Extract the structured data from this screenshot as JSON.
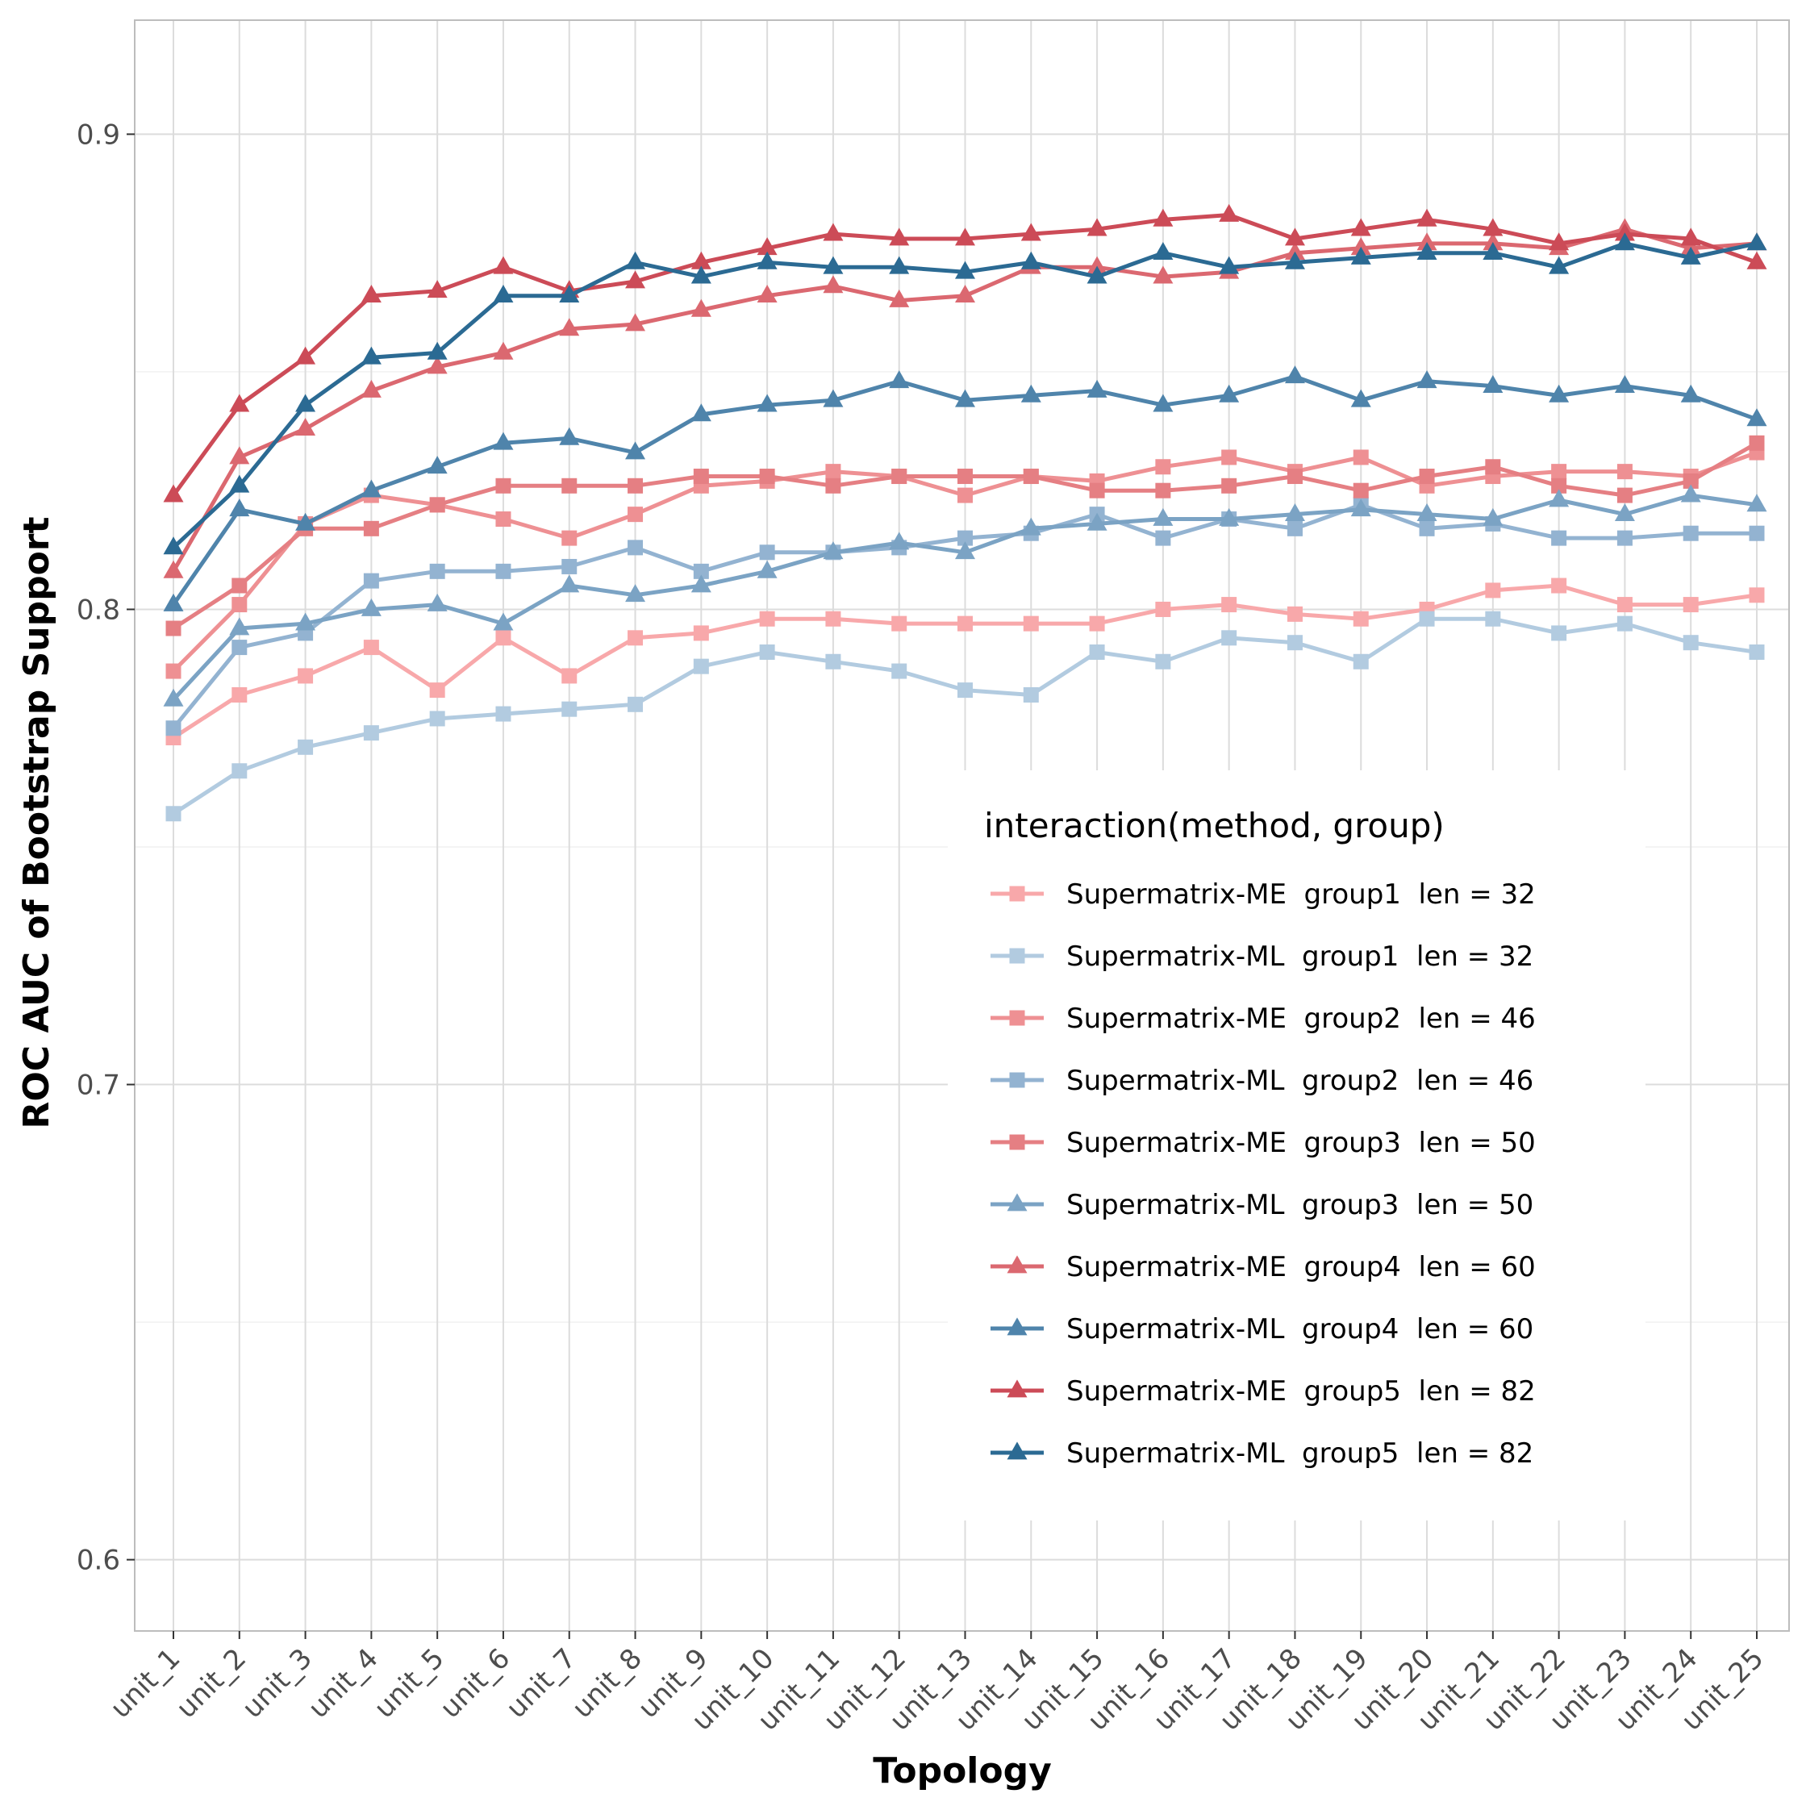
{
  "chart_data": {
    "type": "line",
    "xlabel": "Topology",
    "ylabel": "ROC AUC of Bootstrap Support",
    "ylim": [
      0.585,
      0.924
    ],
    "yticks": [
      0.6,
      0.7,
      0.8,
      0.9
    ],
    "ytick_labels": [
      "0.6",
      "0.7",
      "0.8",
      "0.9"
    ],
    "categories": [
      "unit_1",
      "unit_2",
      "unit_3",
      "unit_4",
      "unit_5",
      "unit_6",
      "unit_7",
      "unit_8",
      "unit_9",
      "unit_10",
      "unit_11",
      "unit_12",
      "unit_13",
      "unit_14",
      "unit_15",
      "unit_16",
      "unit_17",
      "unit_18",
      "unit_19",
      "unit_20",
      "unit_21",
      "unit_22",
      "unit_23",
      "unit_24",
      "unit_25"
    ],
    "grid": true,
    "legend_title": "interaction(method, group)",
    "legend_position": "center-right",
    "series": [
      {
        "name": "Supermatrix-ME  group1  len = 32",
        "color": "#F8A8AA",
        "marker": "square",
        "values": [
          0.773,
          0.782,
          0.786,
          0.792,
          0.783,
          0.794,
          0.786,
          0.794,
          0.795,
          0.798,
          0.798,
          0.797,
          0.797,
          0.797,
          0.797,
          0.8,
          0.801,
          0.799,
          0.798,
          0.8,
          0.804,
          0.805,
          0.801,
          0.801,
          0.803
        ]
      },
      {
        "name": "Supermatrix-ML  group1  len = 32",
        "color": "#B2CBE0",
        "marker": "square",
        "values": [
          0.757,
          0.766,
          0.771,
          0.774,
          0.777,
          0.778,
          0.779,
          0.78,
          0.788,
          0.791,
          0.789,
          0.787,
          0.783,
          0.782,
          0.791,
          0.789,
          0.794,
          0.793,
          0.789,
          0.798,
          0.798,
          0.795,
          0.797,
          0.793,
          0.791
        ]
      },
      {
        "name": "Supermatrix-ME  group2  len = 46",
        "color": "#EE9093",
        "marker": "square",
        "values": [
          0.787,
          0.801,
          0.818,
          0.824,
          0.822,
          0.819,
          0.815,
          0.82,
          0.826,
          0.827,
          0.829,
          0.828,
          0.824,
          0.828,
          0.827,
          0.83,
          0.832,
          0.829,
          0.832,
          0.826,
          0.828,
          0.829,
          0.829,
          0.828,
          0.833
        ]
      },
      {
        "name": "Supermatrix-ML  group2  len = 46",
        "color": "#93B3D1",
        "marker": "square",
        "values": [
          0.775,
          0.792,
          0.795,
          0.806,
          0.808,
          0.808,
          0.809,
          0.813,
          0.808,
          0.812,
          0.812,
          0.813,
          0.815,
          0.816,
          0.82,
          0.815,
          0.819,
          0.817,
          0.822,
          0.817,
          0.818,
          0.815,
          0.815,
          0.816,
          0.816
        ]
      },
      {
        "name": "Supermatrix-ME  group3  len = 50",
        "color": "#E57F83",
        "marker": "square",
        "values": [
          0.796,
          0.805,
          0.817,
          0.817,
          0.822,
          0.826,
          0.826,
          0.826,
          0.828,
          0.828,
          0.826,
          0.828,
          0.828,
          0.828,
          0.825,
          0.825,
          0.826,
          0.828,
          0.825,
          0.828,
          0.83,
          0.826,
          0.824,
          0.827,
          0.835
        ]
      },
      {
        "name": "Supermatrix-ML  group3  len = 50",
        "color": "#7BA3C4",
        "marker": "triangle",
        "values": [
          0.781,
          0.796,
          0.797,
          0.8,
          0.801,
          0.797,
          0.805,
          0.803,
          0.805,
          0.808,
          0.812,
          0.814,
          0.812,
          0.817,
          0.818,
          0.819,
          0.819,
          0.82,
          0.821,
          0.82,
          0.819,
          0.823,
          0.82,
          0.824,
          0.822
        ]
      },
      {
        "name": "Supermatrix-ME  group4  len = 60",
        "color": "#DB6870",
        "marker": "triangle",
        "values": [
          0.808,
          0.832,
          0.838,
          0.846,
          0.851,
          0.854,
          0.859,
          0.86,
          0.863,
          0.866,
          0.868,
          0.865,
          0.866,
          0.872,
          0.872,
          0.87,
          0.871,
          0.875,
          0.876,
          0.877,
          0.877,
          0.876,
          0.88,
          0.876,
          0.877
        ]
      },
      {
        "name": "Supermatrix-ML  group4  len = 60",
        "color": "#4F84AB",
        "marker": "triangle",
        "values": [
          0.801,
          0.821,
          0.818,
          0.825,
          0.83,
          0.835,
          0.836,
          0.833,
          0.841,
          0.843,
          0.844,
          0.848,
          0.844,
          0.845,
          0.846,
          0.843,
          0.845,
          0.849,
          0.844,
          0.848,
          0.847,
          0.845,
          0.847,
          0.845,
          0.84
        ]
      },
      {
        "name": "Supermatrix-ME  group5  len = 82",
        "color": "#CC4B57",
        "marker": "triangle",
        "values": [
          0.824,
          0.843,
          0.853,
          0.866,
          0.867,
          0.872,
          0.867,
          0.869,
          0.873,
          0.876,
          0.879,
          0.878,
          0.878,
          0.879,
          0.88,
          0.882,
          0.883,
          0.878,
          0.88,
          0.882,
          0.88,
          0.877,
          0.879,
          0.878,
          0.873
        ]
      },
      {
        "name": "Supermatrix-ML  group5  len = 82",
        "color": "#2B6A93",
        "marker": "triangle",
        "values": [
          0.813,
          0.826,
          0.843,
          0.853,
          0.854,
          0.866,
          0.866,
          0.873,
          0.87,
          0.873,
          0.872,
          0.872,
          0.871,
          0.873,
          0.87,
          0.875,
          0.872,
          0.873,
          0.874,
          0.875,
          0.875,
          0.872,
          0.877,
          0.874,
          0.877
        ]
      }
    ]
  }
}
